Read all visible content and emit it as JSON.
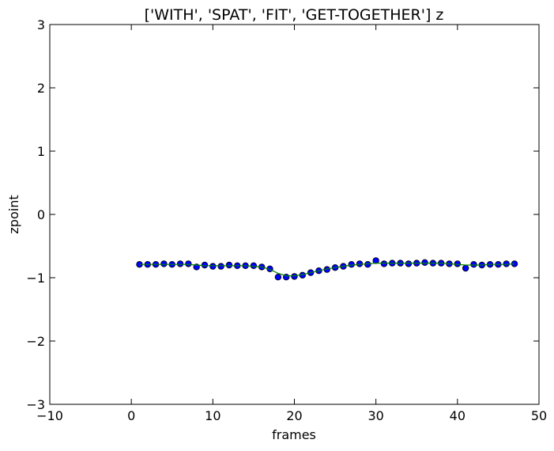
{
  "chart_data": {
    "type": "scatter",
    "title": "['WITH', 'SPAT', 'FIT', 'GET-TOGETHER'] z",
    "xlabel": "frames",
    "ylabel": "zpoint",
    "xlim": [
      -10,
      50
    ],
    "ylim": [
      -3,
      3
    ],
    "xticks": [
      "−10",
      "0",
      "10",
      "20",
      "30",
      "40",
      "50"
    ],
    "yticks": [
      "−3",
      "−2",
      "−1",
      "0",
      "1",
      "2",
      "3"
    ],
    "grid": false,
    "colors": {
      "points": "#0000ff",
      "point_edge": "#000000",
      "line": "#008000"
    },
    "series": [
      {
        "kind": "points",
        "x": [
          1,
          2,
          3,
          4,
          5,
          6,
          7,
          8,
          9,
          10,
          11,
          12,
          13,
          14,
          15,
          16,
          17,
          18,
          19,
          20,
          21,
          22,
          23,
          24,
          25,
          26,
          27,
          28,
          29,
          30,
          31,
          32,
          33,
          34,
          35,
          36,
          37,
          38,
          39,
          40,
          41,
          42,
          43,
          44,
          45,
          46,
          47
        ],
        "y": [
          -0.79,
          -0.79,
          -0.79,
          -0.78,
          -0.79,
          -0.78,
          -0.78,
          -0.83,
          -0.8,
          -0.82,
          -0.82,
          -0.8,
          -0.81,
          -0.81,
          -0.81,
          -0.83,
          -0.86,
          -0.99,
          -0.99,
          -0.98,
          -0.96,
          -0.92,
          -0.89,
          -0.87,
          -0.84,
          -0.82,
          -0.79,
          -0.78,
          -0.79,
          -0.73,
          -0.78,
          -0.77,
          -0.77,
          -0.78,
          -0.77,
          -0.76,
          -0.77,
          -0.77,
          -0.78,
          -0.78,
          -0.85,
          -0.79,
          -0.8,
          -0.79,
          -0.79,
          -0.78,
          -0.78
        ]
      },
      {
        "kind": "line",
        "x": [
          1,
          2,
          3,
          4,
          5,
          6,
          7,
          8,
          9,
          10,
          11,
          12,
          13,
          14,
          15,
          16,
          17,
          18,
          19,
          20,
          21,
          22,
          23,
          24,
          25,
          26,
          27,
          28,
          29,
          30,
          31,
          32,
          33,
          34,
          35,
          36,
          37,
          38,
          39,
          40,
          41,
          42,
          43,
          44,
          45,
          46,
          47
        ],
        "y": [
          -0.79,
          -0.79,
          -0.79,
          -0.79,
          -0.79,
          -0.79,
          -0.79,
          -0.8,
          -0.81,
          -0.81,
          -0.81,
          -0.81,
          -0.81,
          -0.81,
          -0.82,
          -0.83,
          -0.87,
          -0.93,
          -0.97,
          -0.97,
          -0.95,
          -0.92,
          -0.89,
          -0.86,
          -0.84,
          -0.82,
          -0.8,
          -0.79,
          -0.78,
          -0.77,
          -0.77,
          -0.77,
          -0.77,
          -0.77,
          -0.77,
          -0.77,
          -0.77,
          -0.77,
          -0.78,
          -0.79,
          -0.8,
          -0.8,
          -0.8,
          -0.79,
          -0.79,
          -0.79,
          -0.78
        ]
      }
    ]
  }
}
